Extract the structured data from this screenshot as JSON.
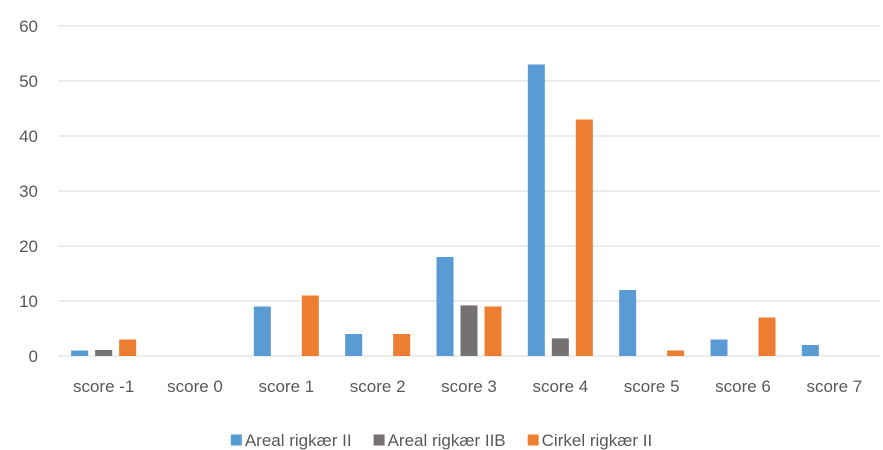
{
  "chart_data": {
    "type": "bar",
    "title": "",
    "xlabel": "",
    "ylabel": "",
    "categories": [
      "score -1",
      "score 0",
      "score 1",
      "score 2",
      "score 3",
      "score 4",
      "score 5",
      "score 6",
      "score 7"
    ],
    "series": [
      {
        "name": "Areal rigkær II",
        "color": "#5b9bd5",
        "values": [
          1,
          0,
          9,
          4,
          18,
          53,
          12,
          3,
          2
        ]
      },
      {
        "name": "Areal rigkær IIB",
        "color": "#767171",
        "values": [
          1.1,
          0,
          0,
          0,
          9.2,
          3.2,
          0,
          0,
          0
        ]
      },
      {
        "name": "Cirkel rigkær II",
        "color": "#ed7d31",
        "values": [
          3,
          0,
          11,
          4,
          9,
          43,
          1,
          7,
          0
        ]
      }
    ],
    "ylim": [
      0,
      60
    ],
    "yticks": [
      0,
      10,
      20,
      30,
      40,
      50,
      60
    ],
    "grid": true,
    "legend_position": "bottom"
  }
}
